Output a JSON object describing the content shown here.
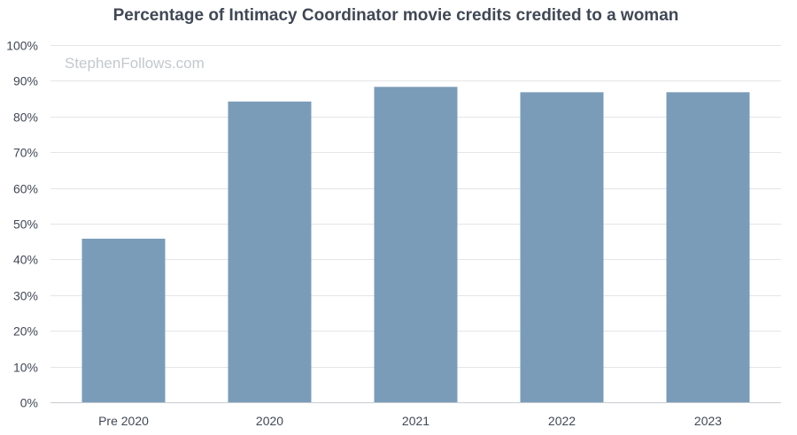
{
  "chart_data": {
    "type": "bar",
    "title": "Percentage of Intimacy Coordinator movie credits credited to a woman",
    "xlabel": "",
    "ylabel": "",
    "categories": [
      "Pre 2020",
      "2020",
      "2021",
      "2022",
      "2023"
    ],
    "values": [
      45.8,
      84.2,
      88.3,
      86.8,
      86.8
    ],
    "ylim": [
      0,
      100
    ],
    "yticks": [
      0,
      10,
      20,
      30,
      40,
      50,
      60,
      70,
      80,
      90,
      100
    ],
    "ytick_suffix": "%",
    "grid": true,
    "legend": "none",
    "bar_color": "#7a9cb8"
  },
  "watermark": "StephenFollows.com"
}
